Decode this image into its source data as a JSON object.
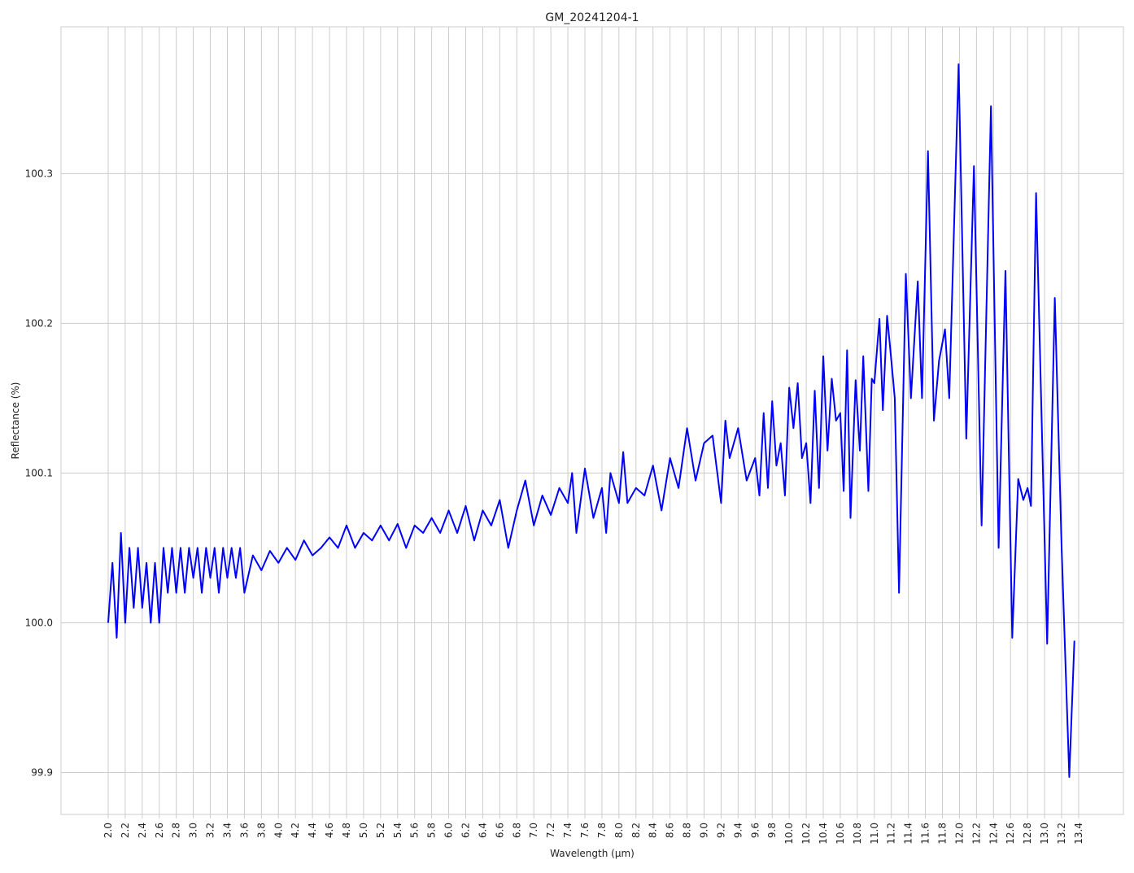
{
  "chart_data": {
    "type": "line",
    "title": "GM_20241204-1",
    "x_label": "Wavelength (µm)",
    "y_label": "Reflectance (%)",
    "x": [
      2.0,
      2.05,
      2.1,
      2.15,
      2.2,
      2.25,
      2.3,
      2.35,
      2.4,
      2.45,
      2.5,
      2.55,
      2.6,
      2.65,
      2.7,
      2.75,
      2.8,
      2.85,
      2.9,
      2.95,
      3.0,
      3.05,
      3.1,
      3.15,
      3.2,
      3.25,
      3.3,
      3.35,
      3.4,
      3.45,
      3.5,
      3.55,
      3.6,
      3.7,
      3.8,
      3.9,
      4.0,
      4.1,
      4.2,
      4.3,
      4.4,
      4.5,
      4.6,
      4.7,
      4.8,
      4.9,
      5.0,
      5.1,
      5.2,
      5.3,
      5.4,
      5.5,
      5.6,
      5.7,
      5.8,
      5.9,
      6.0,
      6.1,
      6.2,
      6.3,
      6.4,
      6.5,
      6.6,
      6.7,
      6.8,
      6.9,
      7.0,
      7.1,
      7.2,
      7.3,
      7.4,
      7.45,
      7.5,
      7.6,
      7.7,
      7.8,
      7.85,
      7.9,
      8.0,
      8.05,
      8.1,
      8.2,
      8.3,
      8.4,
      8.5,
      8.6,
      8.7,
      8.8,
      8.9,
      9.0,
      9.1,
      9.2,
      9.25,
      9.3,
      9.4,
      9.5,
      9.6,
      9.65,
      9.7,
      9.75,
      9.8,
      9.85,
      9.9,
      9.95,
      10.0,
      10.05,
      10.1,
      10.15,
      10.2,
      10.25,
      10.3,
      10.35,
      10.4,
      10.45,
      10.5,
      10.55,
      10.6,
      10.64,
      10.68,
      10.72,
      10.78,
      10.83,
      10.87,
      10.93,
      10.97,
      11.0,
      11.06,
      11.1,
      11.15,
      11.2,
      11.24,
      11.29,
      11.37,
      11.43,
      11.51,
      11.56,
      11.63,
      11.7,
      11.76,
      11.83,
      11.88,
      11.99,
      12.08,
      12.17,
      12.26,
      12.37,
      12.46,
      12.54,
      12.62,
      12.69,
      12.75,
      12.8,
      12.84,
      12.9,
      13.03,
      13.12,
      13.2,
      13.29,
      13.35
    ],
    "series": [
      {
        "name": "Reflectance",
        "color": "#0000ff",
        "values": [
          100.0,
          100.04,
          99.99,
          100.06,
          100.0,
          100.05,
          100.01,
          100.05,
          100.01,
          100.04,
          100.0,
          100.04,
          100.0,
          100.05,
          100.02,
          100.05,
          100.02,
          100.05,
          100.02,
          100.05,
          100.03,
          100.05,
          100.02,
          100.05,
          100.03,
          100.05,
          100.02,
          100.05,
          100.03,
          100.05,
          100.03,
          100.05,
          100.02,
          100.045,
          100.035,
          100.048,
          100.04,
          100.05,
          100.042,
          100.055,
          100.045,
          100.05,
          100.057,
          100.05,
          100.065,
          100.05,
          100.06,
          100.055,
          100.065,
          100.055,
          100.066,
          100.05,
          100.065,
          100.06,
          100.07,
          100.06,
          100.075,
          100.06,
          100.078,
          100.055,
          100.075,
          100.065,
          100.082,
          100.05,
          100.075,
          100.095,
          100.065,
          100.085,
          100.072,
          100.09,
          100.08,
          100.1,
          100.06,
          100.103,
          100.07,
          100.09,
          100.06,
          100.1,
          100.08,
          100.114,
          100.08,
          100.09,
          100.085,
          100.105,
          100.075,
          100.11,
          100.09,
          100.13,
          100.095,
          100.12,
          100.125,
          100.08,
          100.135,
          100.11,
          100.13,
          100.095,
          100.11,
          100.085,
          100.14,
          100.09,
          100.148,
          100.105,
          100.12,
          100.085,
          100.157,
          100.13,
          100.16,
          100.11,
          100.12,
          100.08,
          100.155,
          100.09,
          100.178,
          100.115,
          100.163,
          100.135,
          100.14,
          100.088,
          100.182,
          100.07,
          100.162,
          100.115,
          100.178,
          100.088,
          100.163,
          100.16,
          100.203,
          100.142,
          100.205,
          100.175,
          100.15,
          100.02,
          100.233,
          100.15,
          100.228,
          100.15,
          100.315,
          100.135,
          100.175,
          100.196,
          100.15,
          100.373,
          100.123,
          100.305,
          100.065,
          100.345,
          100.05,
          100.235,
          99.99,
          100.096,
          100.082,
          100.09,
          100.078,
          100.287,
          99.986,
          100.217,
          100.05,
          99.897,
          99.988
        ]
      }
    ],
    "xlim": [
      1.446,
      13.926
    ],
    "ylim": [
      99.872,
      100.398
    ],
    "xticks": [
      {
        "value": 2.0,
        "label": "2.0"
      },
      2.2,
      2.4,
      2.6,
      2.8,
      {
        "value": 3.0,
        "label": "3.0"
      },
      3.2,
      3.4,
      3.6,
      3.8,
      {
        "value": 4.0,
        "label": "4.0"
      },
      4.2,
      4.4,
      4.6,
      4.8,
      {
        "value": 5.0,
        "label": "5.0"
      },
      5.2,
      5.4,
      5.6,
      5.8,
      {
        "value": 6.0,
        "label": "6.0"
      },
      6.2,
      6.4,
      6.6,
      6.8,
      {
        "value": 7.0,
        "label": "7.0"
      },
      7.2,
      7.4,
      7.6,
      7.8,
      {
        "value": 8.0,
        "label": "8.0"
      },
      8.2,
      8.4,
      8.6,
      8.8,
      {
        "value": 9.0,
        "label": "9.0"
      },
      9.2,
      9.4,
      9.6,
      9.8,
      {
        "value": 10.0,
        "label": "10.0"
      },
      10.2,
      10.4,
      10.6,
      10.8,
      {
        "value": 11.0,
        "label": "11.0"
      },
      11.2,
      11.4,
      11.6,
      11.8,
      {
        "value": 12.0,
        "label": "12.0"
      },
      12.2,
      12.4,
      12.6,
      12.8,
      {
        "value": 13.0,
        "label": "13.0"
      },
      13.2,
      13.4
    ],
    "yticks": [
      99.9,
      {
        "value": 100.0,
        "label": "100.0"
      },
      100.1,
      100.2,
      100.3
    ],
    "grid": true
  }
}
